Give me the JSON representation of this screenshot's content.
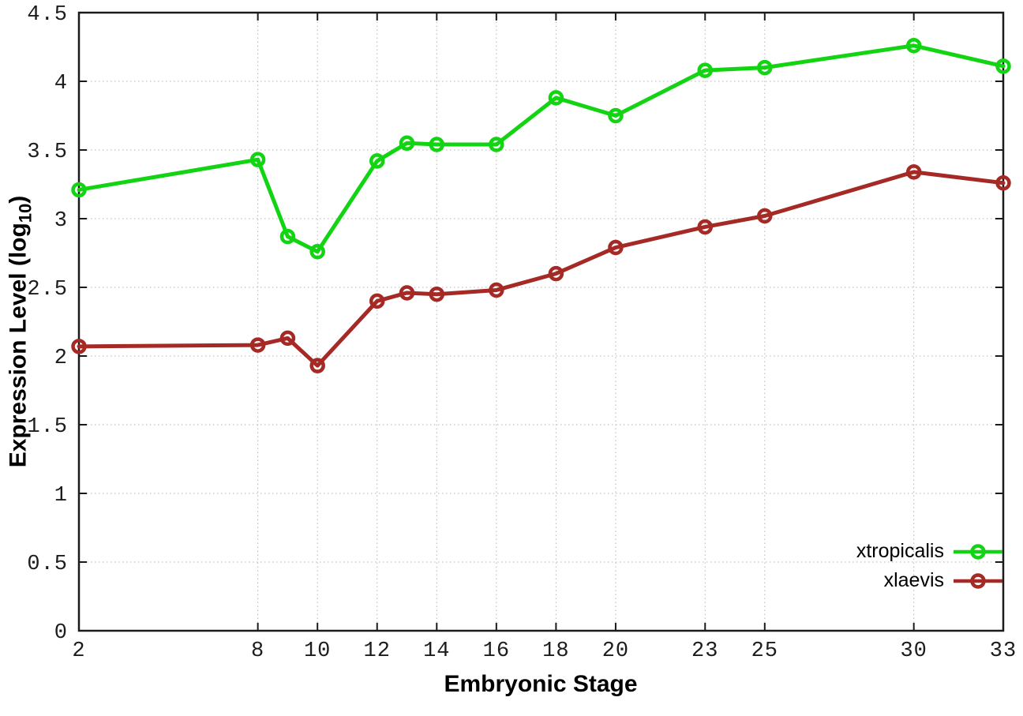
{
  "chart_data": {
    "type": "line",
    "title": "",
    "xlabel": "Embryonic Stage",
    "ylabel": "Expression Level (log10)",
    "ylabel_parts": {
      "main": "Expression Level (log",
      "sub": "10",
      "end": ")"
    },
    "x": [
      2,
      8,
      9,
      10,
      12,
      13,
      14,
      16,
      18,
      20,
      23,
      25,
      30,
      33
    ],
    "series": [
      {
        "name": "xtropicalis",
        "color": "#12d412",
        "values": [
          3.21,
          3.43,
          2.87,
          2.76,
          3.42,
          3.55,
          3.54,
          3.54,
          3.88,
          3.75,
          4.08,
          4.1,
          4.26,
          4.11
        ]
      },
      {
        "name": "xlaevis",
        "color": "#a52a26",
        "values": [
          2.07,
          2.08,
          2.13,
          1.93,
          2.4,
          2.46,
          2.45,
          2.48,
          2.6,
          2.79,
          2.94,
          3.02,
          3.34,
          3.26
        ]
      }
    ],
    "x_ticks": [
      2,
      8,
      10,
      12,
      14,
      16,
      18,
      20,
      23,
      25,
      30,
      33
    ],
    "y_ticks": [
      0,
      0.5,
      1,
      1.5,
      2,
      2.5,
      3,
      3.5,
      4,
      4.5
    ],
    "xlim": [
      2,
      33
    ],
    "ylim": [
      0,
      4.5
    ],
    "grid": true,
    "legend_position": "bottom-right"
  },
  "style": {
    "axis_color": "#1a1a1a",
    "grid_color": "#b5b5b5",
    "tick_label_color": "#1c1c1c",
    "background": "#ffffff",
    "line_width": 5,
    "marker_radius": 7.5,
    "marker_stroke": 4.5
  }
}
